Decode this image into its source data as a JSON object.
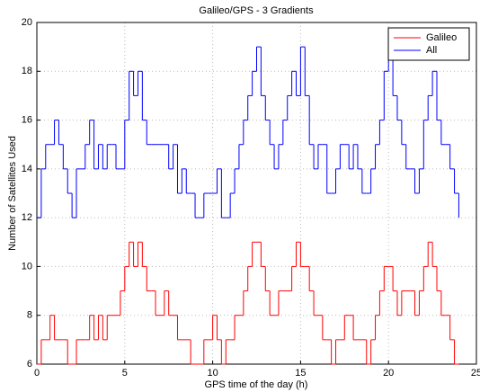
{
  "chart_data": {
    "type": "step",
    "title": "Galileo/GPS - 3 Gradients",
    "xlabel": "GPS time of the day (h)",
    "ylabel": "Number of Satellites Used",
    "x": [
      0,
      0.25,
      0.5,
      0.75,
      1,
      1.25,
      1.5,
      1.75,
      2,
      2.25,
      2.5,
      2.75,
      3,
      3.25,
      3.5,
      3.75,
      4,
      4.25,
      4.5,
      4.75,
      5,
      5.25,
      5.5,
      5.75,
      6,
      6.25,
      6.5,
      6.75,
      7,
      7.25,
      7.5,
      7.75,
      8,
      8.25,
      8.5,
      8.75,
      9,
      9.25,
      9.5,
      9.75,
      10,
      10.25,
      10.5,
      10.75,
      11,
      11.25,
      11.5,
      11.75,
      12,
      12.25,
      12.5,
      12.75,
      13,
      13.25,
      13.5,
      13.75,
      14,
      14.25,
      14.5,
      14.75,
      15,
      15.25,
      15.5,
      15.75,
      16,
      16.25,
      16.5,
      16.75,
      17,
      17.25,
      17.5,
      17.75,
      18,
      18.25,
      18.5,
      18.75,
      19,
      19.25,
      19.5,
      19.75,
      20,
      20.25,
      20.5,
      20.75,
      21,
      21.25,
      21.5,
      21.75,
      22,
      22.25,
      22.5,
      22.75,
      23,
      23.25,
      23.5,
      23.75,
      24
    ],
    "series": [
      {
        "name": "Galileo",
        "color": "#ff0000",
        "values": [
          6,
          7,
          7,
          8,
          7,
          7,
          7,
          6,
          6,
          7,
          7,
          7,
          8,
          7,
          8,
          7,
          8,
          8,
          8,
          9,
          10,
          11,
          10,
          11,
          10,
          9,
          9,
          8,
          8,
          9,
          8,
          8,
          7,
          7,
          7,
          6,
          6,
          6,
          7,
          7,
          8,
          7,
          6,
          7,
          7,
          8,
          8,
          9,
          10,
          11,
          11,
          10,
          9,
          8,
          8,
          9,
          9,
          9,
          10,
          11,
          10,
          10,
          9,
          8,
          8,
          7,
          7,
          6,
          7,
          7,
          8,
          8,
          7,
          7,
          7,
          6,
          7,
          8,
          9,
          10,
          10,
          9,
          8,
          9,
          9,
          9,
          8,
          9,
          10,
          11,
          10,
          9,
          8,
          8,
          7,
          6,
          6
        ]
      },
      {
        "name": "All",
        "color": "#0000ff",
        "values": [
          12,
          14,
          15,
          15,
          16,
          15,
          14,
          13,
          12,
          14,
          14,
          15,
          16,
          14,
          15,
          14,
          15,
          15,
          14,
          14,
          16,
          18,
          17,
          18,
          16,
          15,
          15,
          15,
          15,
          15,
          14,
          15,
          13,
          14,
          13,
          13,
          12,
          12,
          13,
          13,
          13,
          14,
          12,
          12,
          13,
          14,
          15,
          16,
          17,
          18,
          19,
          17,
          16,
          15,
          14,
          15,
          16,
          17,
          18,
          17,
          19,
          17,
          15,
          14,
          15,
          15,
          13,
          13,
          14,
          15,
          15,
          14,
          15,
          14,
          13,
          13,
          14,
          15,
          16,
          18,
          19,
          17,
          16,
          15,
          14,
          14,
          13,
          14,
          16,
          17,
          18,
          16,
          15,
          15,
          14,
          13,
          12
        ]
      }
    ],
    "xlim": [
      0,
      25
    ],
    "xticks": [
      0,
      5,
      10,
      15,
      20,
      25
    ],
    "ylim": [
      6,
      20
    ],
    "yticks": [
      6,
      8,
      10,
      12,
      14,
      16,
      18,
      20
    ],
    "grid": true,
    "legend": "top-right"
  }
}
